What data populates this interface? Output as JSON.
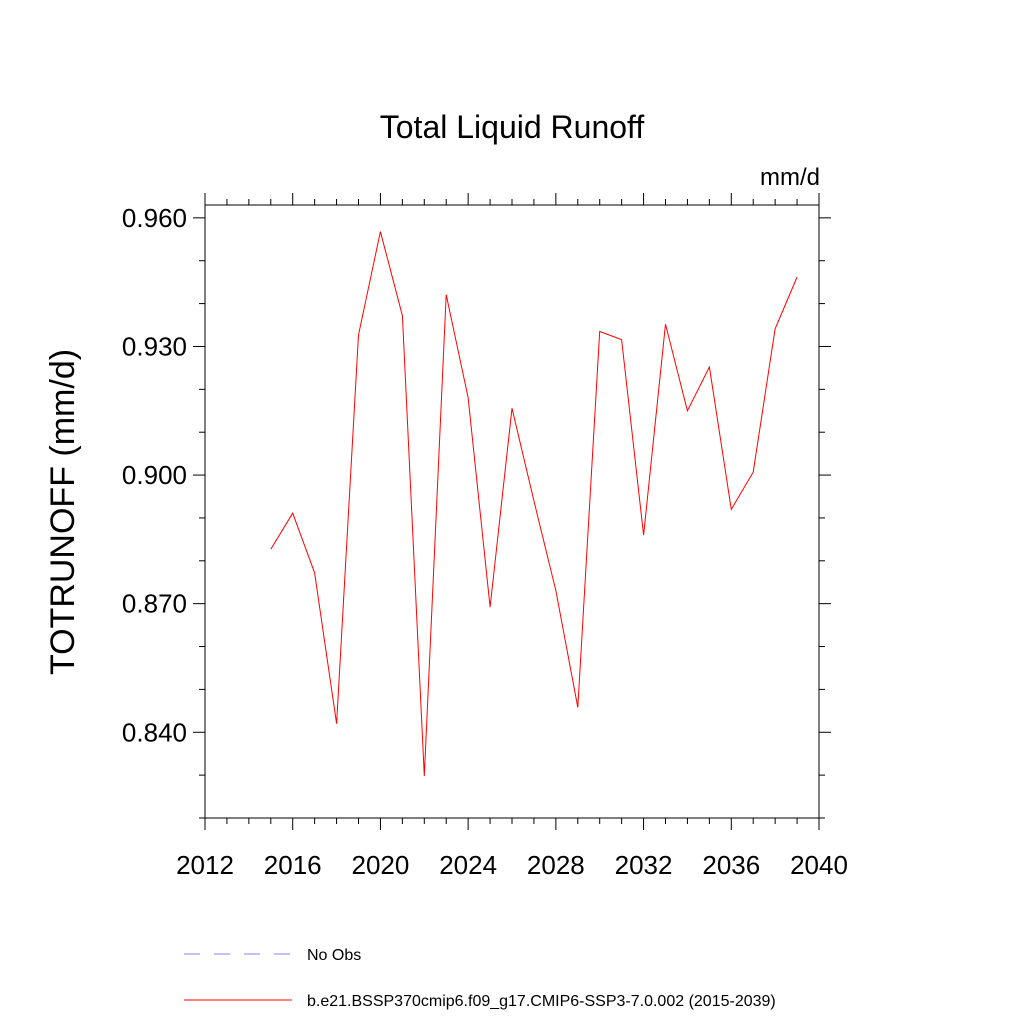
{
  "chart_data": {
    "type": "line",
    "title": "Total Liquid Runoff",
    "units_label": "mm/d",
    "ylabel": "TOTRUNOFF  (mm/d)",
    "xlabel": "",
    "xlim": [
      2012,
      2040
    ],
    "ylim": [
      0.82,
      0.963
    ],
    "x_ticks": [
      2012,
      2016,
      2020,
      2024,
      2028,
      2032,
      2036,
      2040
    ],
    "x_tick_labels": [
      "2012",
      "2016",
      "2020",
      "2024",
      "2028",
      "2032",
      "2036",
      "2040"
    ],
    "y_ticks": [
      0.84,
      0.87,
      0.9,
      0.93,
      0.96
    ],
    "y_tick_labels": [
      "0.840",
      "0.870",
      "0.900",
      "0.930",
      "0.960"
    ],
    "grid": false,
    "legend_position": "bottom",
    "series": [
      {
        "name": "b.e21.BSSP370cmip6.f09_g17.CMIP6-SSP3-7.0.002 (2015-2039)",
        "color": "#ff0000",
        "style": "solid",
        "x": [
          2015,
          2016,
          2017,
          2018,
          2019,
          2020,
          2021,
          2022,
          2023,
          2024,
          2025,
          2026,
          2027,
          2028,
          2029,
          2030,
          2031,
          2032,
          2033,
          2034,
          2035,
          2036,
          2037,
          2038,
          2039
        ],
        "values": [
          0.8827,
          0.8911,
          0.8772,
          0.842,
          0.9327,
          0.9568,
          0.9372,
          0.8298,
          0.9421,
          0.9181,
          0.8692,
          0.9156,
          0.894,
          0.873,
          0.8458,
          0.9335,
          0.9316,
          0.886,
          0.9352,
          0.915,
          0.9252,
          0.892,
          0.9007,
          0.9341,
          0.9462
        ]
      }
    ],
    "legend": [
      {
        "label": "No Obs",
        "color": "#8080ff",
        "style": "dashed"
      },
      {
        "label": "b.e21.BSSP370cmip6.f09_g17.CMIP6-SSP3-7.0.002 (2015-2039)",
        "color": "#ff0000",
        "style": "solid"
      }
    ]
  }
}
